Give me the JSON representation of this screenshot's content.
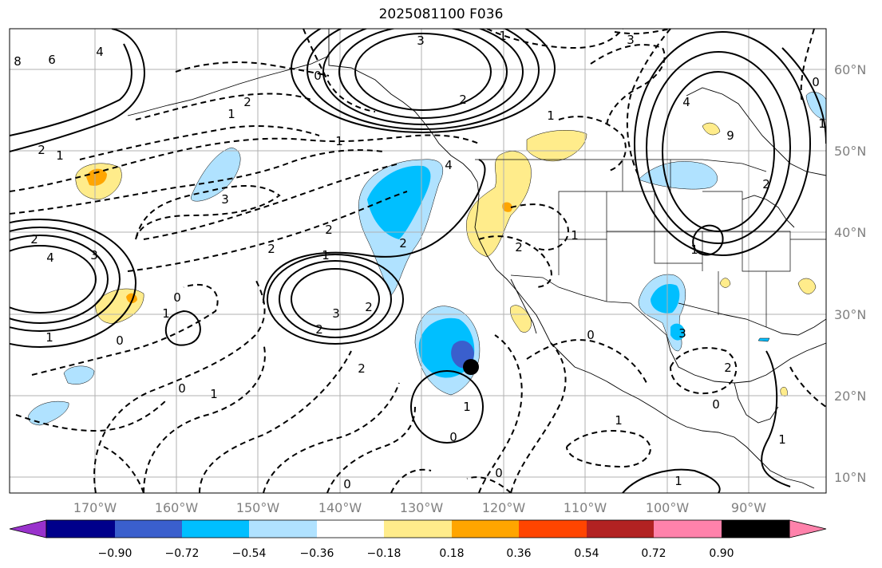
{
  "title": "2025081100 F036",
  "lat_labels": [
    "60°N",
    "50°N",
    "40°N",
    "30°N",
    "20°N",
    "10°N"
  ],
  "lon_labels": [
    "170°W",
    "160°W",
    "150°W",
    "140°W",
    "130°W",
    "120°W",
    "110°W",
    "100°W",
    "90°W"
  ],
  "colorbar": {
    "colors": [
      "#9932cc",
      "#00008b",
      "#3a5fcd",
      "#00bfff",
      "#b0e2ff",
      "#ffffff",
      "#ffec8b",
      "#ffa500",
      "#ff4500",
      "#b22222",
      "#ff82ab"
    ],
    "ticks": [
      "−0.90",
      "−0.72",
      "−0.54",
      "−0.36",
      "−0.18",
      "0.18",
      "0.36",
      "0.54",
      "0.72",
      "0.90"
    ]
  },
  "contour_labels": [
    "3",
    "1",
    "3",
    "2",
    "1",
    "8",
    "6",
    "4",
    "2",
    "1",
    "2",
    "1",
    "0",
    "3",
    "2",
    "1",
    "2",
    "1",
    "2",
    "3",
    "4",
    "2",
    "1",
    "2",
    "3",
    "2",
    "1",
    "0",
    "4",
    "2",
    "1",
    "3",
    "1",
    "0",
    "0",
    "2",
    "1",
    "0",
    "1",
    "0",
    "2",
    "1",
    "0",
    "0",
    "1",
    "0",
    "1",
    "9",
    "4",
    "0",
    "2",
    "1"
  ],
  "colors": {
    "marker": "#000000",
    "grid": "#b0b0b0",
    "contour": "#000000"
  }
}
